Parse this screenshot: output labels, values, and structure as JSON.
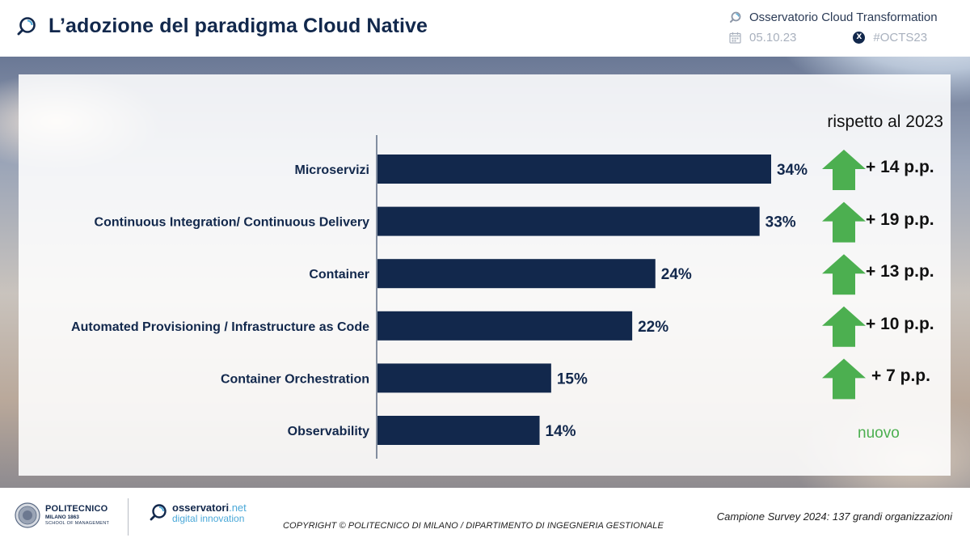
{
  "header": {
    "title": "L’adozione del paradigma Cloud Native",
    "observatory": "Osservatorio Cloud Transformation",
    "date": "05.10.23",
    "hashtag": "#OCTS23",
    "x_badge": "X"
  },
  "comparison": {
    "title": "rispetto al 2023",
    "new_label": "nuovo",
    "arrow_color": "#4caf50"
  },
  "chart_data": {
    "type": "bar",
    "orientation": "horizontal",
    "categories": [
      "Microservizi",
      "Continuous Integration/ Continuous Delivery",
      "Container",
      "Automated Provisioning / Infrastructure as Code",
      "Container Orchestration",
      "Observability"
    ],
    "values": [
      34,
      33,
      24,
      22,
      15,
      14
    ],
    "value_labels": [
      "34%",
      "33%",
      "24%",
      "22%",
      "15%",
      "14%"
    ],
    "deltas": [
      "+ 14 p.p.",
      "+ 19 p.p.",
      "+ 13 p.p.",
      "+ 10 p.p.",
      "+ 7 p.p.",
      null
    ],
    "unit": "%",
    "bar_color": "#12284c",
    "xlim": [
      0,
      34
    ],
    "grid": false,
    "legend": "none"
  },
  "footer": {
    "polimi_name": "POLITECNICO",
    "polimi_sub": "MILANO 1863",
    "polimi_school": "SCHOOL OF MANAGEMENT",
    "osservatori_name": "osservatori",
    "osservatori_tld": ".net",
    "osservatori_sub": "digital innovation",
    "copyright": "COPYRIGHT © POLITECNICO DI MILANO / DIPARTIMENTO DI INGEGNERIA GESTIONALE",
    "survey": "Campione Survey 2024: 137 grandi organizzazioni"
  }
}
